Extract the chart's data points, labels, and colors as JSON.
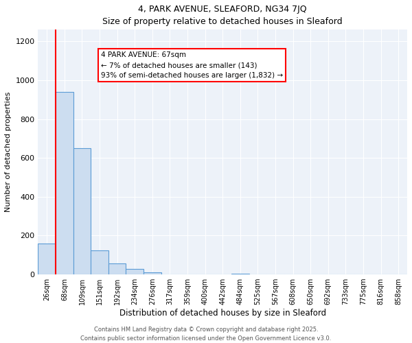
{
  "title": "4, PARK AVENUE, SLEAFORD, NG34 7JQ",
  "subtitle": "Size of property relative to detached houses in Sleaford",
  "xlabel": "Distribution of detached houses by size in Sleaford",
  "ylabel": "Number of detached properties",
  "bin_labels": [
    "26sqm",
    "68sqm",
    "109sqm",
    "151sqm",
    "192sqm",
    "234sqm",
    "276sqm",
    "317sqm",
    "359sqm",
    "400sqm",
    "442sqm",
    "484sqm",
    "525sqm",
    "567sqm",
    "608sqm",
    "650sqm",
    "692sqm",
    "733sqm",
    "775sqm",
    "816sqm",
    "858sqm"
  ],
  "bar_values": [
    160,
    940,
    650,
    125,
    57,
    27,
    10,
    0,
    0,
    0,
    0,
    3,
    0,
    0,
    0,
    0,
    0,
    0,
    0,
    0,
    0
  ],
  "bar_color": "#ccddf0",
  "bar_edgecolor": "#5b9bd5",
  "annotation_line1": "4 PARK AVENUE: 67sqm",
  "annotation_line2": "← 7% of detached houses are smaller (143)",
  "annotation_line3": "93% of semi-detached houses are larger (1,832) →",
  "ylim": [
    0,
    1260
  ],
  "yticks": [
    0,
    200,
    400,
    600,
    800,
    1000,
    1200
  ],
  "footer_line1": "Contains HM Land Registry data © Crown copyright and database right 2025.",
  "footer_line2": "Contains public sector information licensed under the Open Government Licence v3.0.",
  "bg_color": "#ffffff",
  "plot_bg_color": "#edf2f9"
}
